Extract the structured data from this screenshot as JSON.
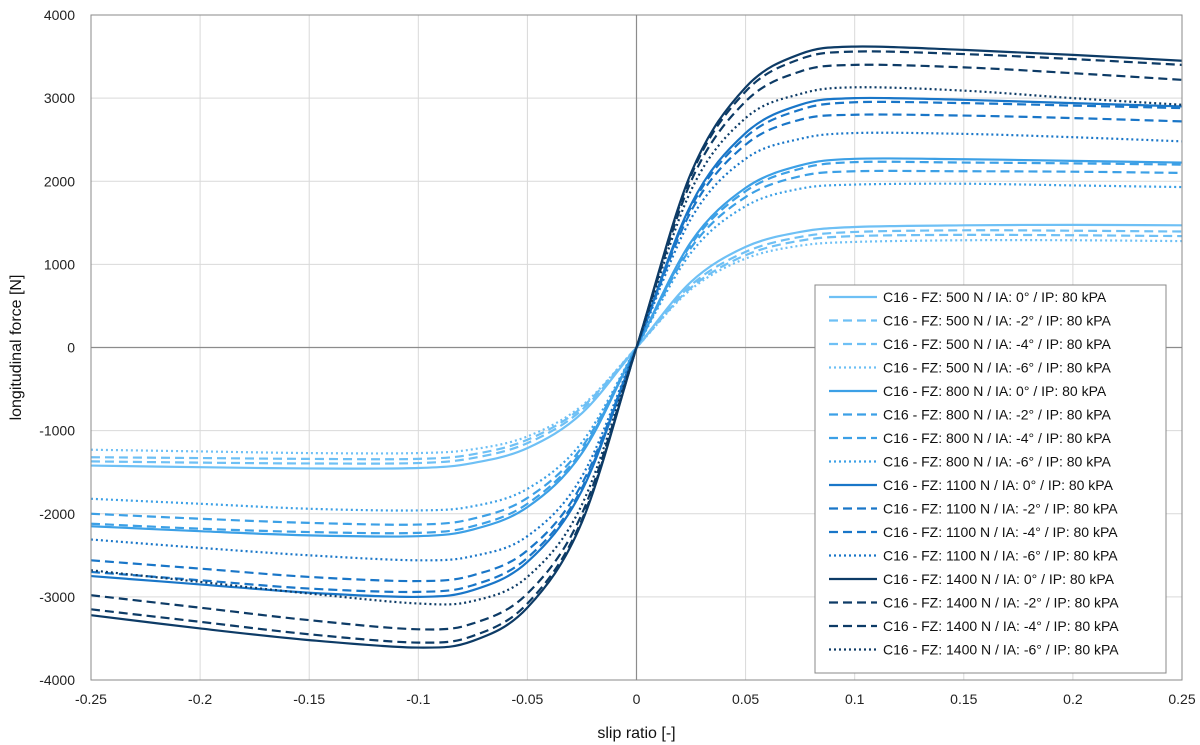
{
  "chart_data": {
    "type": "line",
    "xlabel": "slip ratio [-]",
    "ylabel": "longitudinal force [N]",
    "xlim": [
      -0.25,
      0.25
    ],
    "ylim": [
      -4000,
      4000
    ],
    "x_ticks": [
      "-0.25",
      "-0.2",
      "-0.15",
      "-0.1",
      "-0.05",
      "0",
      "0.05",
      "0.1",
      "0.15",
      "0.2",
      "0.25"
    ],
    "y_ticks": [
      "-4000",
      "-3000",
      "-2000",
      "-1000",
      "0",
      "1000",
      "2000",
      "3000",
      "4000"
    ],
    "grid": true,
    "legend_position": "right",
    "x": [
      -0.25,
      -0.2,
      -0.15,
      -0.1,
      -0.075,
      -0.05,
      -0.025,
      0,
      0.025,
      0.05,
      0.075,
      0.1,
      0.15,
      0.2,
      0.25
    ],
    "series": [
      {
        "name": "C16 - FZ: 500 N / IA: 0° / IP: 80 kPA",
        "style": "solid",
        "color": "#6ec0f5",
        "values": [
          -1420,
          -1440,
          -1455,
          -1450,
          -1390,
          -1210,
          -790,
          0,
          790,
          1210,
          1390,
          1450,
          1470,
          1475,
          1470
        ]
      },
      {
        "name": "C16 - FZ: 500 N / IA: -2° / IP: 80 kPA",
        "style": "dashed",
        "color": "#6ec0f5",
        "values": [
          -1370,
          -1385,
          -1395,
          -1390,
          -1330,
          -1150,
          -750,
          0,
          750,
          1150,
          1330,
          1390,
          1410,
          1405,
          1395
        ]
      },
      {
        "name": "C16 - FZ: 500 N / IA: -4° / IP: 80 kPA",
        "style": "dashed",
        "color": "#6ec0f5",
        "values": [
          -1320,
          -1330,
          -1340,
          -1340,
          -1285,
          -1110,
          -720,
          0,
          720,
          1110,
          1285,
          1340,
          1355,
          1350,
          1340
        ]
      },
      {
        "name": "C16 - FZ: 500 N / IA: -6° / IP: 80 kPA",
        "style": "dotted",
        "color": "#6ec0f5",
        "values": [
          -1230,
          -1250,
          -1270,
          -1270,
          -1225,
          -1070,
          -700,
          0,
          700,
          1070,
          1225,
          1270,
          1290,
          1290,
          1280
        ]
      },
      {
        "name": "C16 - FZ: 800 N / IA: 0° / IP: 80 kPA",
        "style": "solid",
        "color": "#3ca0e6",
        "values": [
          -2150,
          -2210,
          -2260,
          -2270,
          -2190,
          -1920,
          -1270,
          0,
          1270,
          1920,
          2190,
          2270,
          2265,
          2245,
          2225
        ]
      },
      {
        "name": "C16 - FZ: 800 N / IA: -2° / IP: 80 kPA",
        "style": "dashed",
        "color": "#3ca0e6",
        "values": [
          -2120,
          -2180,
          -2220,
          -2230,
          -2150,
          -1880,
          -1240,
          0,
          1240,
          1880,
          2150,
          2230,
          2225,
          2215,
          2200
        ]
      },
      {
        "name": "C16 - FZ: 800 N / IA: -4° / IP: 80 kPA",
        "style": "dashed",
        "color": "#3ca0e6",
        "values": [
          -2000,
          -2060,
          -2110,
          -2130,
          -2060,
          -1810,
          -1200,
          0,
          1200,
          1810,
          2060,
          2120,
          2120,
          2115,
          2100
        ]
      },
      {
        "name": "C16 - FZ: 800 N / IA: -6° / IP: 80 kPA",
        "style": "dotted",
        "color": "#3ca0e6",
        "values": [
          -1820,
          -1880,
          -1940,
          -1960,
          -1910,
          -1700,
          -1140,
          0,
          1140,
          1700,
          1910,
          1960,
          1970,
          1950,
          1930
        ]
      },
      {
        "name": "C16 - FZ: 1100 N / IA: 0° / IP: 80 kPA",
        "style": "solid",
        "color": "#1976c8",
        "values": [
          -2750,
          -2850,
          -2950,
          -3000,
          -2920,
          -2580,
          -1720,
          0,
          1720,
          2580,
          2920,
          3000,
          2980,
          2940,
          2900
        ]
      },
      {
        "name": "C16 - FZ: 1100 N / IA: -2° / IP: 80 kPA",
        "style": "dashed",
        "color": "#1976c8",
        "values": [
          -2700,
          -2800,
          -2900,
          -2940,
          -2860,
          -2530,
          -1690,
          0,
          1690,
          2530,
          2860,
          2950,
          2940,
          2910,
          2880
        ]
      },
      {
        "name": "C16 - FZ: 1100 N / IA: -4° / IP: 80 kPA",
        "style": "dashed",
        "color": "#1976c8",
        "values": [
          -2560,
          -2660,
          -2760,
          -2810,
          -2740,
          -2440,
          -1640,
          0,
          1640,
          2440,
          2740,
          2800,
          2790,
          2760,
          2720
        ]
      },
      {
        "name": "C16 - FZ: 1100 N / IA: -6° / IP: 80 kPA",
        "style": "dotted",
        "color": "#1976c8",
        "values": [
          -2310,
          -2410,
          -2500,
          -2560,
          -2510,
          -2270,
          -1550,
          0,
          1550,
          2270,
          2510,
          2580,
          2570,
          2530,
          2480
        ]
      },
      {
        "name": "C16 - FZ: 1400 N / IA: 0° / IP: 80 kPA",
        "style": "solid",
        "color": "#0d3b66",
        "values": [
          -3220,
          -3380,
          -3520,
          -3610,
          -3530,
          -3130,
          -2100,
          0,
          2100,
          3130,
          3530,
          3620,
          3580,
          3520,
          3450
        ]
      },
      {
        "name": "C16 - FZ: 1400 N / IA: -2° / IP: 80 kPA",
        "style": "dashed",
        "color": "#0d3b66",
        "values": [
          -3150,
          -3300,
          -3450,
          -3550,
          -3470,
          -3080,
          -2070,
          0,
          2070,
          3080,
          3470,
          3560,
          3530,
          3470,
          3400
        ]
      },
      {
        "name": "C16 - FZ: 1400 N / IA: -4° / IP: 80 kPA",
        "style": "dashed",
        "color": "#0d3b66",
        "values": [
          -2980,
          -3130,
          -3280,
          -3390,
          -3320,
          -2960,
          -2000,
          0,
          2000,
          2960,
          3320,
          3400,
          3370,
          3300,
          3220
        ]
      },
      {
        "name": "C16 - FZ: 1400 N / IA: -6° / IP: 80 kPA",
        "style": "dotted",
        "color": "#0d3b66",
        "values": [
          -2680,
          -2820,
          -2960,
          -3080,
          -3050,
          -2760,
          -1890,
          0,
          1890,
          2760,
          3050,
          3130,
          3090,
          3000,
          2920
        ]
      }
    ]
  }
}
